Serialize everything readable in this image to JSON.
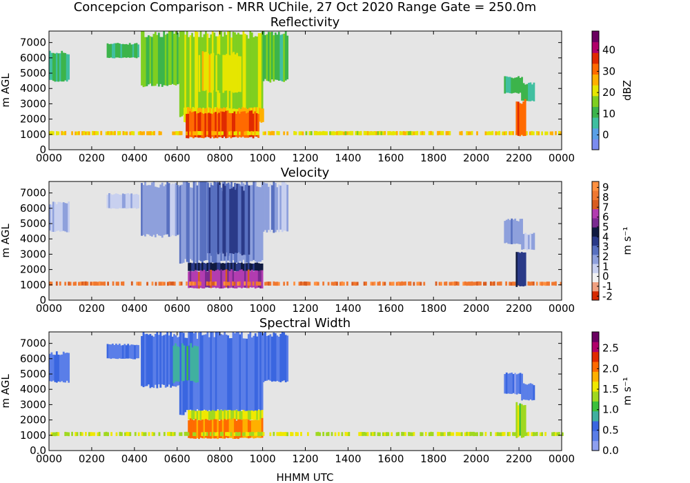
{
  "figure": {
    "suptitle": "Concepcion Comparison - MRR UChile, 27 Oct 2020 Range Gate = 250.0m",
    "xlabel": "HHMM UTC"
  },
  "chart_data": [
    {
      "type": "heatmap",
      "title": "Reflectivity",
      "ylabel": "m AGL",
      "xticks": [
        "0000",
        "0200",
        "0400",
        "0600",
        "0800",
        "1000",
        "1200",
        "1400",
        "1600",
        "1800",
        "2000",
        "2200",
        "0000"
      ],
      "yticks": [
        "0",
        "1000",
        "2000",
        "3000",
        "4000",
        "5000",
        "6000",
        "7000"
      ],
      "ylim": [
        0,
        7750
      ],
      "colorbar": {
        "label": "dBZ",
        "ticks": [
          "0",
          "10",
          "20",
          "30",
          "40"
        ],
        "range": [
          -7,
          49
        ],
        "colors": [
          "#7b8cf0",
          "#5aa0e6",
          "#40bfa0",
          "#3cb44b",
          "#7fcf20",
          "#e6e600",
          "#ffb000",
          "#ff6a00",
          "#e02a00",
          "#b0006a",
          "#6a0060"
        ]
      },
      "cells": [
        {
          "x0": 0,
          "x1": 0.9,
          "y0": 4500,
          "y1": 6300,
          "v": 8
        },
        {
          "x0": 2.7,
          "x1": 4.2,
          "y0": 6000,
          "y1": 6900,
          "v": 10
        },
        {
          "x0": 4.3,
          "x1": 6.1,
          "y0": 4200,
          "y1": 7500,
          "v": 14
        },
        {
          "x0": 6.1,
          "x1": 10.0,
          "y0": 2200,
          "y1": 7500,
          "v": 17
        },
        {
          "x0": 7.0,
          "x1": 9.0,
          "y0": 3800,
          "y1": 6200,
          "v": 21
        },
        {
          "x0": 10.0,
          "x1": 11.2,
          "y0": 4500,
          "y1": 7500,
          "v": 11
        },
        {
          "x0": 6.3,
          "x1": 10.0,
          "y0": 1800,
          "y1": 2700,
          "v": 24
        },
        {
          "x0": 6.4,
          "x1": 9.8,
          "y0": 800,
          "y1": 2400,
          "v": 33
        },
        {
          "x0": 0,
          "x1": 24.0,
          "y0": 950,
          "y1": 1200,
          "v": 24
        },
        {
          "x0": 12.0,
          "x1": 17.0,
          "y0": 950,
          "y1": 1200,
          "v": 20
        },
        {
          "x0": 21.3,
          "x1": 22.1,
          "y0": 3700,
          "y1": 4700,
          "v": 10
        },
        {
          "x0": 22.1,
          "x1": 22.7,
          "y0": 3200,
          "y1": 4300,
          "v": 9
        },
        {
          "x0": 21.85,
          "x1": 22.25,
          "y0": 900,
          "y1": 3100,
          "v": 31
        }
      ]
    },
    {
      "type": "heatmap",
      "title": "Velocity",
      "ylabel": "m AGL",
      "xticks": [
        "0000",
        "0200",
        "0400",
        "0600",
        "0800",
        "1000",
        "1200",
        "1400",
        "1600",
        "1800",
        "2000",
        "2200",
        "0000"
      ],
      "yticks": [
        "0",
        "1000",
        "2000",
        "3000",
        "4000",
        "5000",
        "6000",
        "7000"
      ],
      "ylim": [
        0,
        7750
      ],
      "colorbar": {
        "label": "m s⁻¹",
        "ticks": [
          "-2",
          "-1",
          "0",
          "1",
          "2",
          "3",
          "4",
          "5",
          "6",
          "7",
          "8",
          "9"
        ],
        "range": [
          -2.4,
          9.6
        ],
        "colors": [
          "#d62a00",
          "#f0a080",
          "#f2f2f2",
          "#c8d0ef",
          "#8ea0dc",
          "#5870c0",
          "#2a3a88",
          "#101a40",
          "#7a2a90",
          "#b23cb0",
          "#d85c20",
          "#f07830",
          "#ff9040"
        ]
      },
      "cells": [
        {
          "x0": 0,
          "x1": 0.9,
          "y0": 4500,
          "y1": 6300,
          "v": 1.3
        },
        {
          "x0": 2.7,
          "x1": 4.2,
          "y0": 6000,
          "y1": 6900,
          "v": 1.0
        },
        {
          "x0": 4.3,
          "x1": 6.1,
          "y0": 4200,
          "y1": 7500,
          "v": 1.8
        },
        {
          "x0": 6.1,
          "x1": 10.0,
          "y0": 2500,
          "y1": 7500,
          "v": 2.2
        },
        {
          "x0": 7.4,
          "x1": 9.4,
          "y0": 3000,
          "y1": 7300,
          "v": 3.0
        },
        {
          "x0": 10.0,
          "x1": 11.2,
          "y0": 4500,
          "y1": 7500,
          "v": 1.7
        },
        {
          "x0": 6.5,
          "x1": 10.0,
          "y0": 1900,
          "y1": 2400,
          "v": 4.2
        },
        {
          "x0": 6.5,
          "x1": 10.0,
          "y0": 800,
          "y1": 1900,
          "v": 6.3
        },
        {
          "x0": 0,
          "x1": 24.0,
          "y0": 950,
          "y1": 1200,
          "v": 8.2
        },
        {
          "x0": 21.3,
          "x1": 22.1,
          "y0": 3700,
          "y1": 5200,
          "v": 2.0
        },
        {
          "x0": 22.1,
          "x1": 22.7,
          "y0": 3300,
          "y1": 4300,
          "v": 1.4
        },
        {
          "x0": 21.85,
          "x1": 22.25,
          "y0": 900,
          "y1": 3100,
          "v": 3.6
        }
      ]
    },
    {
      "type": "heatmap",
      "title": "Spectral Width",
      "ylabel": "m AGL",
      "xticks": [
        "0000",
        "0200",
        "0400",
        "0600",
        "0800",
        "1000",
        "1200",
        "1400",
        "1600",
        "1800",
        "2000",
        "2200",
        "0000"
      ],
      "yticks": [
        "0.0",
        "1000",
        "2000",
        "3000",
        "4000",
        "5000",
        "6000",
        "7000"
      ],
      "ylim": [
        0,
        7750
      ],
      "colorbar": {
        "label": "m s⁻¹",
        "ticks": [
          "0.0",
          "0.5",
          "1.0",
          "1.5",
          "2.0",
          "2.5"
        ],
        "range": [
          0,
          2.9
        ],
        "colors": [
          "#8ea0f0",
          "#5a7ee8",
          "#3a66e0",
          "#40b0a0",
          "#3cc03c",
          "#a0d820",
          "#f0e800",
          "#ffb000",
          "#ff6a00",
          "#e02a00",
          "#b0006a",
          "#6a0060"
        ]
      },
      "cells": [
        {
          "x0": 0,
          "x1": 0.9,
          "y0": 4500,
          "y1": 6300,
          "v": 0.4
        },
        {
          "x0": 2.7,
          "x1": 4.2,
          "y0": 6000,
          "y1": 6900,
          "v": 0.4
        },
        {
          "x0": 4.3,
          "x1": 6.1,
          "y0": 4200,
          "y1": 7500,
          "v": 0.5
        },
        {
          "x0": 6.1,
          "x1": 10.0,
          "y0": 2500,
          "y1": 7500,
          "v": 0.45
        },
        {
          "x0": 5.8,
          "x1": 7.0,
          "y0": 4500,
          "y1": 6800,
          "v": 0.8
        },
        {
          "x0": 10.0,
          "x1": 11.2,
          "y0": 4500,
          "y1": 7500,
          "v": 0.55
        },
        {
          "x0": 6.5,
          "x1": 10.0,
          "y0": 2000,
          "y1": 2600,
          "v": 1.5
        },
        {
          "x0": 6.5,
          "x1": 10.0,
          "y0": 800,
          "y1": 2000,
          "v": 2.0
        },
        {
          "x0": 0,
          "x1": 24.0,
          "y0": 950,
          "y1": 1200,
          "v": 1.4
        },
        {
          "x0": 21.3,
          "x1": 22.1,
          "y0": 3700,
          "y1": 5000,
          "v": 0.4
        },
        {
          "x0": 22.1,
          "x1": 22.7,
          "y0": 3300,
          "y1": 4300,
          "v": 0.4
        },
        {
          "x0": 21.85,
          "x1": 22.25,
          "y0": 900,
          "y1": 3000,
          "v": 1.3
        }
      ]
    }
  ]
}
